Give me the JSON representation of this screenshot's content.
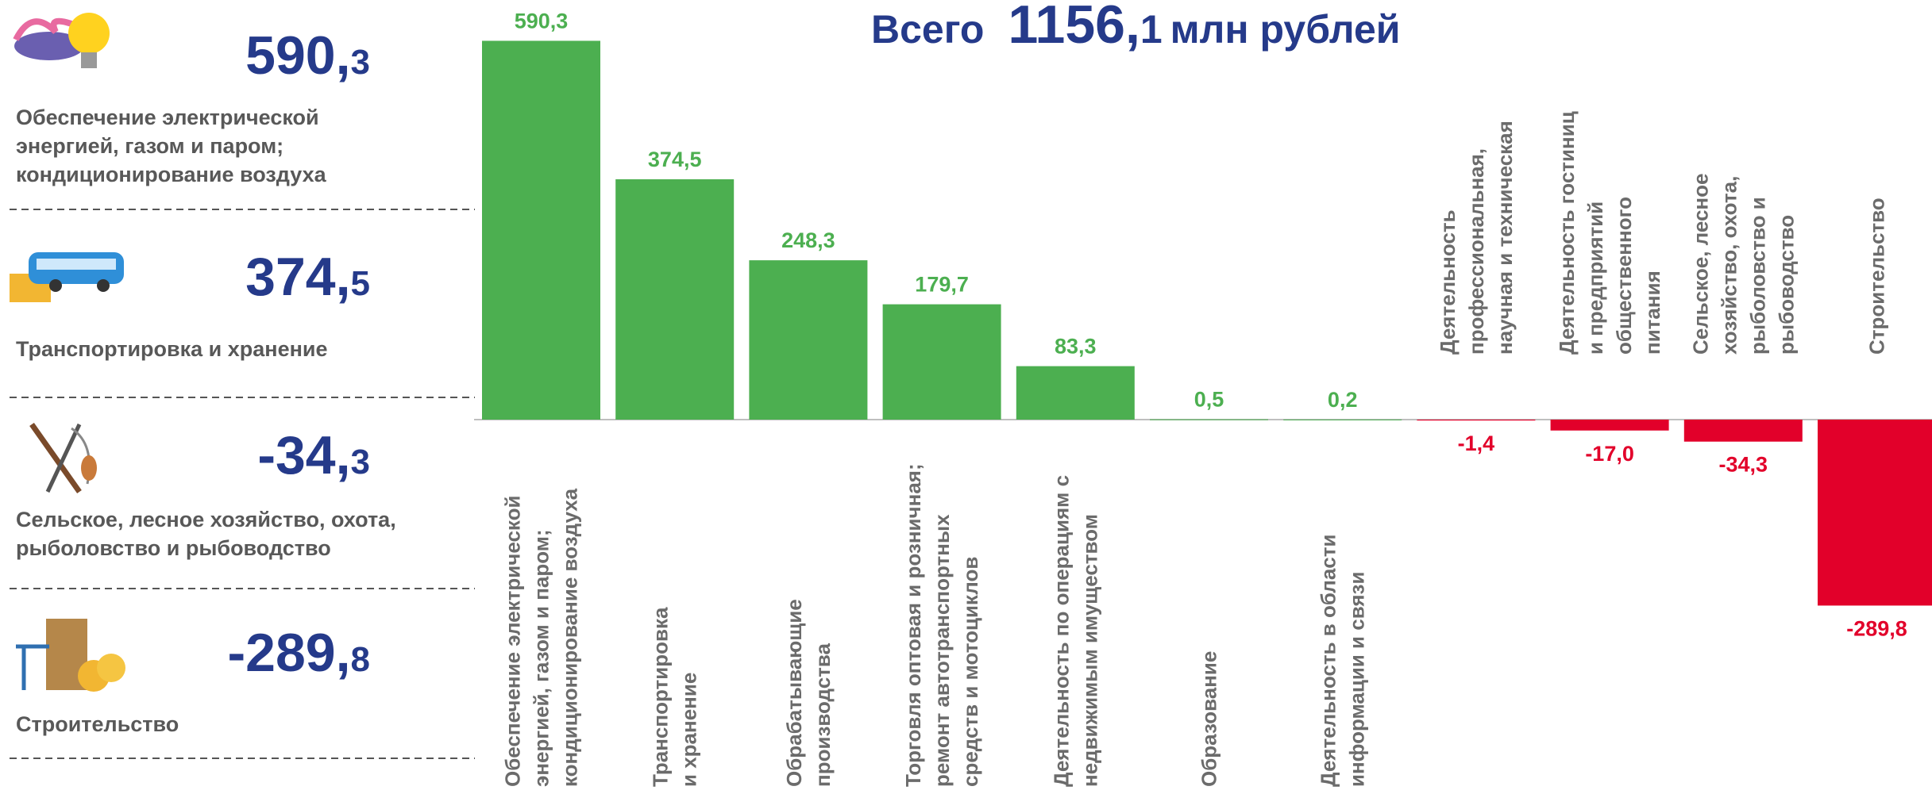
{
  "chart_data": {
    "type": "bar",
    "total": {
      "label": "Всего",
      "value": "1156,1",
      "unit": "млн рублей"
    },
    "highlights": [
      {
        "value": "590,3",
        "label": "Обеспечение электрической\nэнергией, газом  и паром;\nкондиционирование воздуха"
      },
      {
        "value": "374,5",
        "label": "Транспортировка и хранение"
      },
      {
        "value": "-34,3",
        "label": "Сельское, лесное хозяйство, охота,\nрыболовство и рыбоводство"
      },
      {
        "value": "-289,8",
        "label": "Строительство"
      }
    ],
    "categories": [
      "Обеспечение электрической\nэнергией, газом  и паром;\nкондиционирование воздуха",
      "Транспортировка\nи хранение",
      "Обрабатывающие\nпроизводства",
      "Торговля оптовая и розничная;\nремонт автотранспортных\nсредств и мотоциклов",
      "Деятельность по операциям с\nнедвижимым имуществом",
      "Образование",
      "Деятельность в области\nинформации и связи",
      "Деятельность\nпрофессиональная,\nнаучная и техническая",
      "Деятельность гостиниц\nи предприятий\nобщественного\nпитания",
      "Сельское, лесное\nхозяйство, охота,\nрыболовство и\nрыбоводство",
      "Строительство"
    ],
    "values": [
      590.3,
      374.5,
      248.3,
      179.7,
      83.3,
      0.5,
      0.2,
      -1.4,
      -17.0,
      -34.3,
      -289.8
    ],
    "value_labels": [
      "590,3",
      "374,5",
      "248,3",
      "179,7",
      "83,3",
      "0,5",
      "0,2",
      "-1,4",
      "-17,0",
      "-34,3",
      "-289,8"
    ],
    "colors": {
      "positive": "#4caf50",
      "negative": "#e2002a"
    }
  }
}
